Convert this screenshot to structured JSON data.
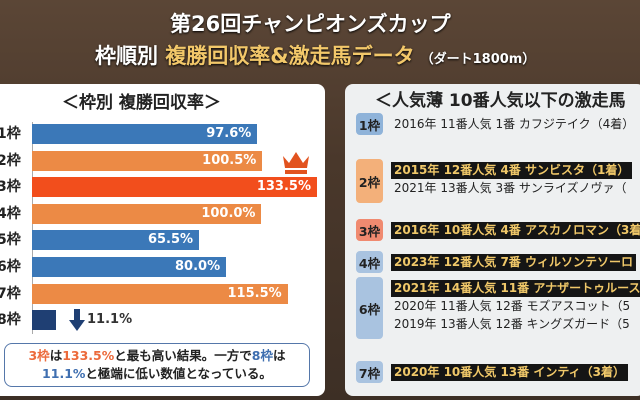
{
  "header": {
    "title": "第26回チャンピオンズカップ",
    "subtitle_prefix": "枠順別",
    "subtitle_highlight": "複勝回収率&激走馬データ",
    "subtitle_note": "（ダート1800m）"
  },
  "colors": {
    "blue": "#3b78b8",
    "orange": "#ec8a45",
    "red": "#f24e1c",
    "navy": "#1f3f73",
    "highlight_text": "#f0c869"
  },
  "left_panel": {
    "title": "＜枠別 複勝回収率＞",
    "chart_data": {
      "type": "bar",
      "orientation": "horizontal",
      "categories": [
        "1枠",
        "2枠",
        "3枠",
        "4枠",
        "5枠",
        "6枠",
        "7枠",
        "8枠"
      ],
      "values": [
        97.6,
        100.5,
        133.5,
        100.0,
        65.5,
        80.0,
        115.5,
        11.1
      ],
      "labels": [
        "97.6%",
        "100.5%",
        "133.5%",
        "100.0%",
        "65.5%",
        "80.0%",
        "115.5%",
        "11.1%"
      ],
      "bar_colors": [
        "#3b78b8",
        "#ec8a45",
        "#f24e1c",
        "#ec8a45",
        "#3b78b8",
        "#3b78b8",
        "#ec8a45",
        "#1f3f73"
      ],
      "max_marker": "crown-icon",
      "min_marker": "down-arrow-icon"
    },
    "callout": {
      "p1": "3枠",
      "p2": "は",
      "p3": "133.5%",
      "p4": "と最も高い結果。一方で",
      "p5": "8枠",
      "p6": "は",
      "p7": "11.1%",
      "p8": "と極端に低い数値となっている。"
    }
  },
  "right_panel": {
    "title": "＜人気薄 10番人気以下の激走馬",
    "groups": [
      {
        "badge": "1枠",
        "color": "#8fb3d9",
        "lines": [
          {
            "text": "2016年 11番人気  1番 カフジテイク（4着）",
            "highlight": false
          }
        ]
      },
      {
        "badge": "2枠",
        "color": "#f3b07a",
        "lines": [
          {
            "text": "2015年 12番人気  4番 サンビスタ（1着）",
            "highlight": true
          },
          {
            "text": "2021年 13番人気  3番 サンライズノヴァ（",
            "highlight": false
          }
        ]
      },
      {
        "badge": "3枠",
        "color": "#f08a70",
        "lines": [
          {
            "text": "2016年 10番人気  4番 アスカノロマン（3着",
            "highlight": true
          }
        ]
      },
      {
        "badge": "4枠",
        "color": "#a9c3e0",
        "lines": [
          {
            "text": "2023年 12番人気  7番 ウィルソンテソーロ",
            "highlight": true
          }
        ]
      },
      {
        "badge": "6枠",
        "color": "#a9c3e0",
        "lines": [
          {
            "text": "2021年 14番人気 11番 アナザートゥルース",
            "highlight": true
          },
          {
            "text": "2020年 11番人気 12番 モズアスコット（5",
            "highlight": false
          },
          {
            "text": "2019年 13番人気 12番 キングズガード（5",
            "highlight": false
          }
        ]
      },
      {
        "badge": "7枠",
        "color": "#a9c3e0",
        "lines": [
          {
            "text": "2020年 10番人気 13番 インティ（3着）",
            "highlight": true
          }
        ]
      }
    ]
  }
}
